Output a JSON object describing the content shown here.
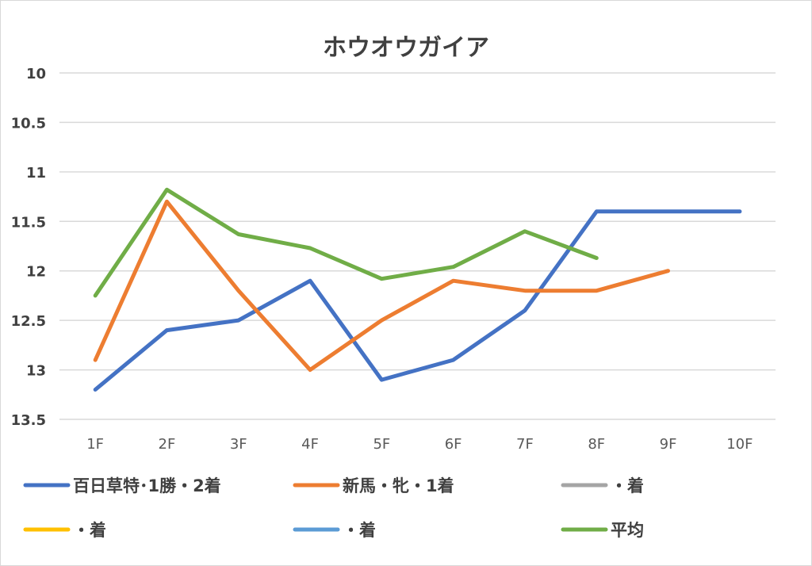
{
  "chart_data": {
    "type": "line",
    "title": "ホウオウガイア",
    "categories": [
      "1F",
      "2F",
      "3F",
      "4F",
      "5F",
      "6F",
      "7F",
      "8F",
      "9F",
      "10F"
    ],
    "ylim": [
      10,
      13.5
    ],
    "y_inverted": true,
    "y_ticks": [
      "10",
      "10.5",
      "11",
      "11.5",
      "12",
      "12.5",
      "13",
      "13.5"
    ],
    "grid": true,
    "legend_position": "bottom",
    "series": [
      {
        "name": "百日草特･1勝・2着",
        "color": "#4472c4",
        "values": [
          13.2,
          12.6,
          12.5,
          12.1,
          13.1,
          12.9,
          12.4,
          11.4,
          11.4,
          11.4
        ]
      },
      {
        "name": "新馬・牝・1着",
        "color": "#ed7d31",
        "values": [
          12.9,
          11.3,
          12.2,
          13.0,
          12.5,
          12.1,
          12.2,
          12.2,
          12.0,
          null
        ]
      },
      {
        "name": "・着",
        "color": "#a5a5a5",
        "values": [
          null,
          null,
          null,
          null,
          null,
          null,
          null,
          null,
          null,
          null
        ]
      },
      {
        "name": "・着",
        "color": "#ffc000",
        "values": [
          null,
          null,
          null,
          null,
          null,
          null,
          null,
          null,
          null,
          null
        ]
      },
      {
        "name": "・着",
        "color": "#5b9bd5",
        "values": [
          null,
          null,
          null,
          null,
          null,
          null,
          null,
          null,
          null,
          null
        ]
      },
      {
        "name": "平均",
        "color": "#70ad47",
        "values": [
          12.25,
          11.18,
          11.63,
          11.77,
          12.08,
          11.96,
          11.6,
          11.87,
          null,
          null
        ]
      }
    ]
  }
}
